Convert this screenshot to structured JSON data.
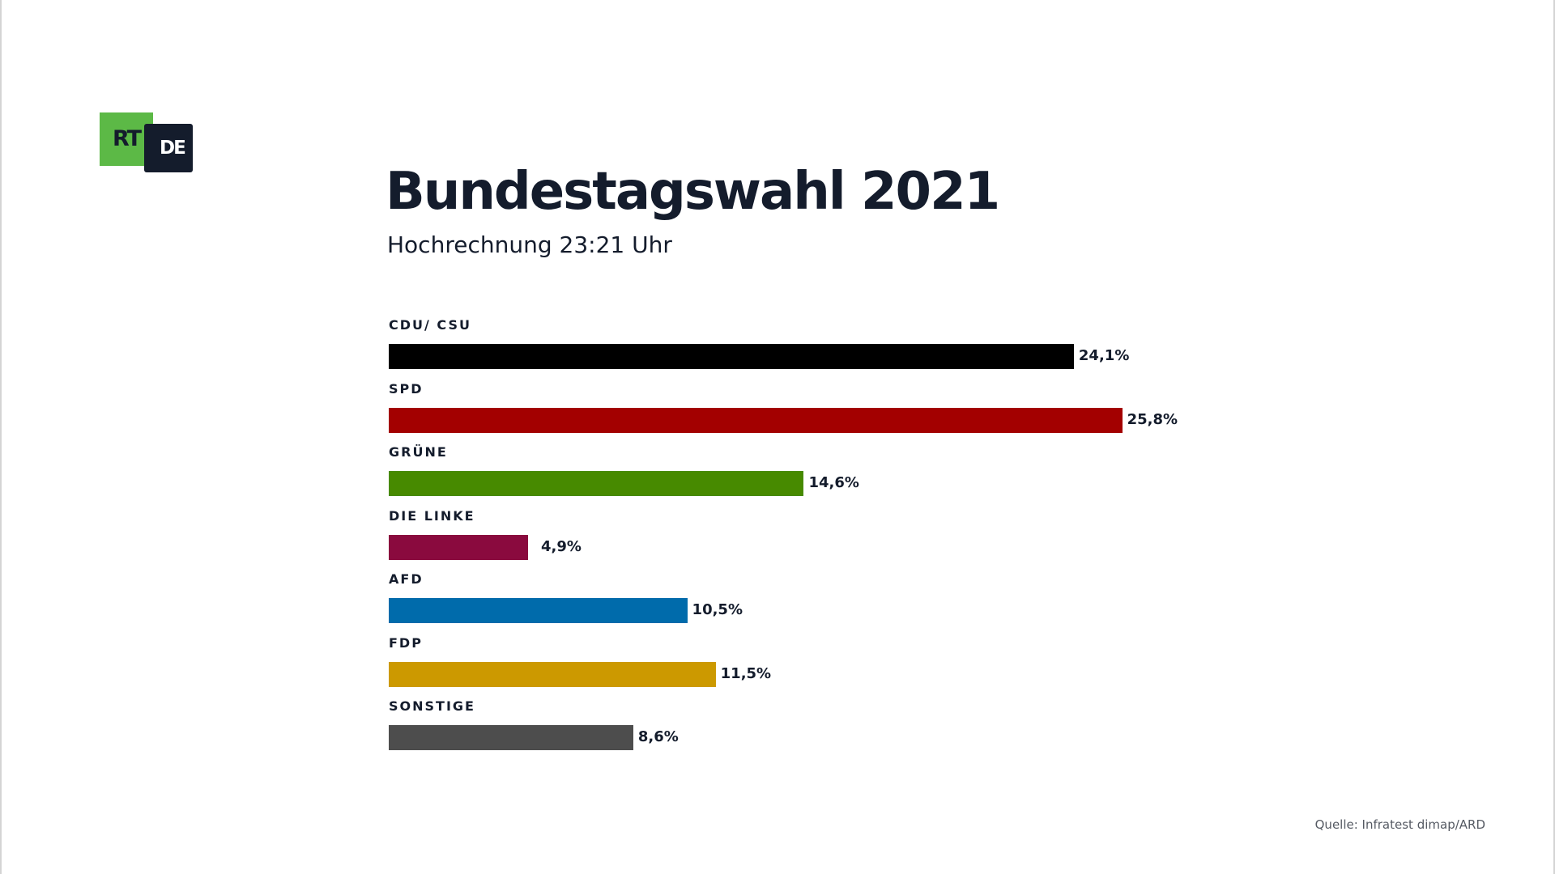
{
  "logo": {
    "primary": "RT",
    "secondary": "DE",
    "green": "#5cb946",
    "navy": "#141c2c"
  },
  "title": "Bundestagswahl 2021",
  "subtitle": "Hochrechnung 23:21 Uhr",
  "source": "Quelle: Infratest dimap/ARD",
  "chart_data": {
    "type": "bar",
    "orientation": "horizontal",
    "title": "Bundestagswahl 2021",
    "subtitle": "Hochrechnung 23:21 Uhr",
    "xlabel": "",
    "ylabel": "",
    "unit": "%",
    "xlim": [
      0,
      30
    ],
    "grid": false,
    "categories": [
      "CDU/ CSU",
      "SPD",
      "GRÜNE",
      "DIE LINKE",
      "AFD",
      "FDP",
      "SONSTIGE"
    ],
    "values": [
      24.1,
      25.8,
      14.6,
      4.9,
      10.5,
      11.5,
      8.6
    ],
    "value_labels": [
      "24,1%",
      "25,8%",
      "14,6%",
      "4,9%",
      "10,5%",
      "11,5%",
      "8,6%"
    ],
    "colors": [
      "#000000",
      "#a30000",
      "#478a00",
      "#8a0a3e",
      "#006bab",
      "#cc9900",
      "#4d4d4d"
    ]
  }
}
